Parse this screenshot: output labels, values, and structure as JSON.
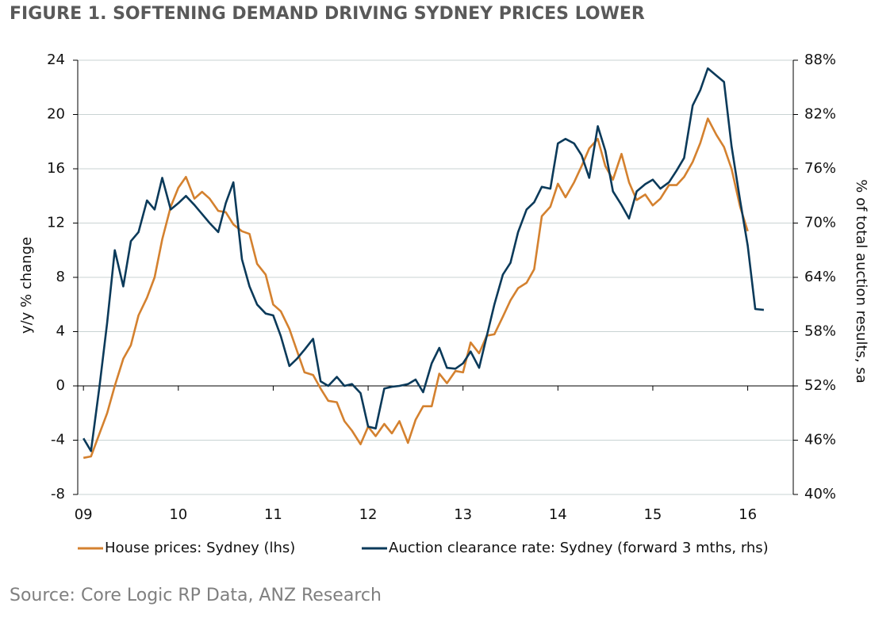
{
  "chart_data": {
    "type": "line",
    "title": "FIGURE 1. SOFTENING DEMAND DRIVING SYDNEY PRICES LOWER",
    "y_label": "y/y % change",
    "y2_label": "% of total auction results, sa",
    "source": "Source: Core Logic RP Data, ANZ Research",
    "x": [
      9,
      9.08,
      9.17,
      9.25,
      9.33,
      9.42,
      9.5,
      9.58,
      9.67,
      9.75,
      9.83,
      9.92,
      10,
      10.08,
      10.17,
      10.25,
      10.33,
      10.42,
      10.5,
      10.58,
      10.67,
      10.75,
      10.83,
      10.92,
      11,
      11.08,
      11.17,
      11.25,
      11.33,
      11.42,
      11.5,
      11.58,
      11.67,
      11.75,
      11.83,
      11.92,
      12,
      12.08,
      12.17,
      12.25,
      12.33,
      12.42,
      12.5,
      12.58,
      12.67,
      12.75,
      12.83,
      12.92,
      13,
      13.08,
      13.17,
      13.25,
      13.33,
      13.42,
      13.5,
      13.58,
      13.67,
      13.75,
      13.83,
      13.92,
      14,
      14.08,
      14.17,
      14.25,
      14.33,
      14.42,
      14.5,
      14.58,
      14.67,
      14.75,
      14.83,
      14.92,
      15,
      15.08,
      15.17,
      15.25,
      15.33,
      15.42,
      15.5,
      15.58,
      15.67,
      15.75,
      15.83,
      15.92,
      16,
      16.08,
      16.17
    ],
    "xlim": [
      8.94,
      16.48
    ],
    "xticks": [
      {
        "value": 9,
        "label": "09"
      },
      10,
      11,
      12,
      13,
      14,
      15,
      16
    ],
    "ylim": [
      -8,
      24
    ],
    "yticks": [
      -8,
      -4,
      0,
      4,
      8,
      12,
      16,
      20,
      24
    ],
    "y2lim": [
      40,
      88
    ],
    "y2ticks": [
      {
        "value": 40,
        "label": "40%"
      },
      {
        "value": 46,
        "label": "46%"
      },
      {
        "value": 52,
        "label": "52%"
      },
      {
        "value": 58,
        "label": "58%"
      },
      {
        "value": 64,
        "label": "64%"
      },
      {
        "value": 70,
        "label": "70%"
      },
      {
        "value": 76,
        "label": "76%"
      },
      {
        "value": 82,
        "label": "82%"
      },
      {
        "value": 88,
        "label": "88%"
      }
    ],
    "grid": true,
    "legend": "bottom",
    "series": [
      {
        "name": "House prices: Sydney (lhs)",
        "color": "#d4812f",
        "values": [
          -5.3,
          -5.2,
          -3.5,
          -2.0,
          0.0,
          2.0,
          3.0,
          5.2,
          6.5,
          8.0,
          10.8,
          13.2,
          14.6,
          15.4,
          13.8,
          14.3,
          13.8,
          12.9,
          12.8,
          11.9,
          11.4,
          11.2,
          9.0,
          8.2,
          6.0,
          5.5,
          4.2,
          2.6,
          1.0,
          0.8,
          -0.2,
          -1.1,
          -1.2,
          -2.6,
          -3.3,
          -4.3,
          -3.0,
          -3.7,
          -2.8,
          -3.5,
          -2.6,
          -4.2,
          -2.5,
          -1.5,
          -1.5,
          0.9,
          0.2,
          1.1,
          1.0,
          3.2,
          2.4,
          3.7,
          3.8,
          5.1,
          6.3,
          7.2,
          7.6,
          8.6,
          12.5,
          13.2,
          14.9,
          13.9,
          15.0,
          16.2,
          17.5,
          18.2,
          16.2,
          15.2,
          17.1,
          15.0,
          13.7,
          14.1,
          13.3,
          13.8,
          14.8,
          14.8,
          15.4,
          16.5,
          17.9,
          19.7,
          18.5,
          17.6,
          16.0,
          13.2,
          11.4,
          null,
          null
        ]
      },
      {
        "name": "Auction clearance rate: Sydney (forward 3 mths, rhs)",
        "color": "#0b3a5a",
        "axis": "y2",
        "values": [
          46.2,
          44.8,
          52,
          59,
          67,
          63,
          68,
          69,
          72.5,
          71.5,
          75,
          71.5,
          72.2,
          73,
          72,
          71,
          70,
          69,
          72.2,
          74.5,
          66,
          63,
          61,
          60,
          59.8,
          57.5,
          54.2,
          55,
          56,
          57.2,
          52.5,
          52,
          53,
          52,
          52.2,
          51.2,
          47.5,
          47.3,
          51.7,
          51.9,
          52,
          52.2,
          52.7,
          51.3,
          54.5,
          56.2,
          54,
          53.9,
          54.5,
          55.8,
          54,
          57.5,
          61,
          64.3,
          65.6,
          69,
          71.5,
          72.3,
          74,
          73.8,
          78.8,
          79.3,
          78.8,
          77.5,
          75,
          80.7,
          78,
          73.5,
          72,
          70.5,
          73.5,
          74.3,
          74.8,
          73.8,
          74.5,
          75.8,
          77.2,
          83,
          84.7,
          87.1,
          86.3,
          85.6,
          78.5,
          72.5,
          67.5,
          60.5,
          60.4
        ]
      }
    ]
  }
}
